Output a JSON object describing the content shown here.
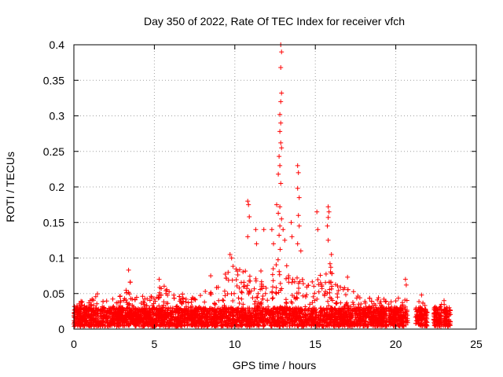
{
  "chart_data": {
    "type": "scatter",
    "title": "Day 350 of 2022, Rate Of TEC Index for receiver vfch",
    "xlabel": "GPS time / hours",
    "ylabel": "ROTI / TECUs",
    "xlim": [
      0,
      25
    ],
    "ylim": [
      0,
      0.4
    ],
    "xticks": [
      0,
      5,
      10,
      15,
      20,
      25
    ],
    "xtick_labels": [
      "0",
      "5",
      "10",
      "15",
      "20",
      "25"
    ],
    "yticks": [
      0,
      0.05,
      0.1,
      0.15,
      0.2,
      0.25,
      0.3,
      0.35,
      0.4
    ],
    "ytick_labels": [
      "0",
      "0.05",
      "0.1",
      "0.15",
      "0.2",
      "0.25",
      "0.3",
      "0.35",
      "0.4"
    ],
    "grid": true,
    "marker": "+",
    "marker_color": "#ff0000",
    "envelope": {
      "x": [
        0.0,
        0.5,
        1.0,
        1.5,
        2.0,
        2.5,
        3.0,
        3.3,
        3.6,
        4.0,
        4.5,
        5.0,
        5.5,
        6.0,
        6.5,
        7.0,
        7.5,
        8.0,
        8.5,
        9.0,
        9.5,
        9.8,
        10.2,
        10.6,
        11.0,
        11.5,
        12.0,
        12.5,
        12.9,
        13.3,
        13.8,
        14.2,
        14.6,
        15.0,
        15.5,
        15.9,
        16.3,
        16.8,
        17.2,
        17.6,
        18.0,
        18.5,
        19.0,
        19.5,
        20.0,
        20.5,
        21.0,
        21.5,
        22.0,
        22.5,
        23.0,
        23.4
      ],
      "y": [
        0.035,
        0.04,
        0.045,
        0.05,
        0.04,
        0.045,
        0.05,
        0.08,
        0.06,
        0.045,
        0.05,
        0.045,
        0.07,
        0.05,
        0.05,
        0.05,
        0.045,
        0.05,
        0.06,
        0.07,
        0.085,
        0.1,
        0.09,
        0.085,
        0.08,
        0.08,
        0.09,
        0.1,
        0.12,
        0.09,
        0.08,
        0.08,
        0.07,
        0.07,
        0.085,
        0.1,
        0.07,
        0.06,
        0.055,
        0.05,
        0.05,
        0.045,
        0.045,
        0.04,
        0.045,
        0.045,
        0.04,
        0.045,
        0.04,
        0.035,
        0.035,
        0.035
      ]
    },
    "outliers": [
      {
        "x": 9.7,
        "y": 0.105
      },
      {
        "x": 9.8,
        "y": 0.1
      },
      {
        "x": 10.8,
        "y": 0.18
      },
      {
        "x": 10.85,
        "y": 0.175
      },
      {
        "x": 10.9,
        "y": 0.158
      },
      {
        "x": 10.8,
        "y": 0.13
      },
      {
        "x": 11.3,
        "y": 0.14
      },
      {
        "x": 11.35,
        "y": 0.12
      },
      {
        "x": 11.8,
        "y": 0.14
      },
      {
        "x": 12.3,
        "y": 0.14
      },
      {
        "x": 12.4,
        "y": 0.12
      },
      {
        "x": 12.85,
        "y": 0.4
      },
      {
        "x": 12.9,
        "y": 0.39
      },
      {
        "x": 12.85,
        "y": 0.368
      },
      {
        "x": 12.9,
        "y": 0.332
      },
      {
        "x": 12.85,
        "y": 0.32
      },
      {
        "x": 12.8,
        "y": 0.302
      },
      {
        "x": 12.85,
        "y": 0.29
      },
      {
        "x": 12.8,
        "y": 0.278
      },
      {
        "x": 12.85,
        "y": 0.262
      },
      {
        "x": 12.9,
        "y": 0.255
      },
      {
        "x": 12.75,
        "y": 0.243
      },
      {
        "x": 12.8,
        "y": 0.23
      },
      {
        "x": 12.7,
        "y": 0.218
      },
      {
        "x": 12.85,
        "y": 0.205
      },
      {
        "x": 12.6,
        "y": 0.175
      },
      {
        "x": 12.8,
        "y": 0.172
      },
      {
        "x": 12.7,
        "y": 0.163
      },
      {
        "x": 12.9,
        "y": 0.155
      },
      {
        "x": 12.8,
        "y": 0.145
      },
      {
        "x": 12.75,
        "y": 0.132
      },
      {
        "x": 13.0,
        "y": 0.14
      },
      {
        "x": 13.1,
        "y": 0.125
      },
      {
        "x": 13.5,
        "y": 0.15
      },
      {
        "x": 13.55,
        "y": 0.13
      },
      {
        "x": 13.9,
        "y": 0.23
      },
      {
        "x": 13.95,
        "y": 0.22
      },
      {
        "x": 13.9,
        "y": 0.198
      },
      {
        "x": 14.0,
        "y": 0.185
      },
      {
        "x": 13.95,
        "y": 0.16
      },
      {
        "x": 14.0,
        "y": 0.145
      },
      {
        "x": 13.9,
        "y": 0.12
      },
      {
        "x": 14.1,
        "y": 0.11
      },
      {
        "x": 15.1,
        "y": 0.165
      },
      {
        "x": 15.15,
        "y": 0.14
      },
      {
        "x": 15.8,
        "y": 0.172
      },
      {
        "x": 15.85,
        "y": 0.165
      },
      {
        "x": 15.8,
        "y": 0.157
      },
      {
        "x": 15.75,
        "y": 0.145
      },
      {
        "x": 15.8,
        "y": 0.125
      },
      {
        "x": 16.0,
        "y": 0.105
      },
      {
        "x": 20.6,
        "y": 0.07
      },
      {
        "x": 20.65,
        "y": 0.062
      },
      {
        "x": 3.4,
        "y": 0.083
      },
      {
        "x": 5.3,
        "y": 0.07
      },
      {
        "x": 8.5,
        "y": 0.075
      },
      {
        "x": 17.0,
        "y": 0.073
      },
      {
        "x": 21.6,
        "y": 0.048
      },
      {
        "x": 23.0,
        "y": 0.04
      }
    ],
    "gaps": [
      [
        19.45,
        19.55
      ],
      [
        20.75,
        21.2
      ],
      [
        21.95,
        22.35
      ],
      [
        22.85,
        22.95
      ]
    ]
  }
}
